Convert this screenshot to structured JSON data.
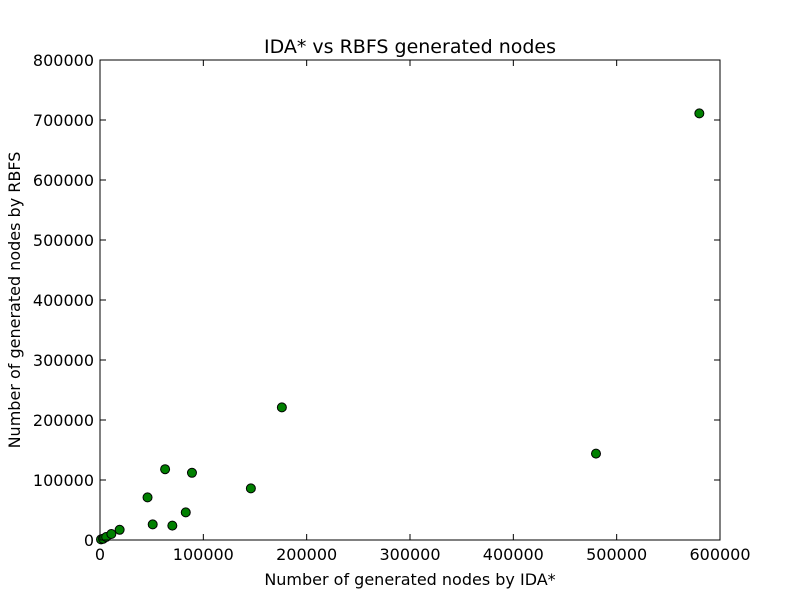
{
  "chart_data": {
    "type": "scatter",
    "title": "IDA* vs RBFS generated nodes",
    "xlabel": "Number of generated nodes by IDA*",
    "ylabel": "Number of generated nodes by RBFS",
    "xlim": [
      0,
      600000
    ],
    "ylim": [
      0,
      800000
    ],
    "xticks": [
      0,
      100000,
      200000,
      300000,
      400000,
      500000,
      600000
    ],
    "yticks": [
      0,
      100000,
      200000,
      300000,
      400000,
      500000,
      600000,
      700000,
      800000
    ],
    "xtick_labels": [
      "0",
      "100000",
      "200000",
      "300000",
      "400000",
      "500000",
      "600000"
    ],
    "ytick_labels": [
      "0",
      "100000",
      "200000",
      "300000",
      "400000",
      "500000",
      "600000",
      "700000",
      "800000"
    ],
    "grid": false,
    "marker_color": "#008000",
    "series": [
      {
        "points": [
          [
            1000,
            1000
          ],
          [
            3000,
            2000
          ],
          [
            6000,
            5000
          ],
          [
            11000,
            10000
          ],
          [
            19000,
            17000
          ],
          [
            46000,
            71000
          ],
          [
            51000,
            26000
          ],
          [
            63000,
            118000
          ],
          [
            70000,
            24000
          ],
          [
            83000,
            46000
          ],
          [
            89000,
            112000
          ],
          [
            146000,
            86000
          ],
          [
            176000,
            221000
          ],
          [
            480000,
            144000
          ],
          [
            580000,
            711000
          ]
        ]
      }
    ]
  }
}
